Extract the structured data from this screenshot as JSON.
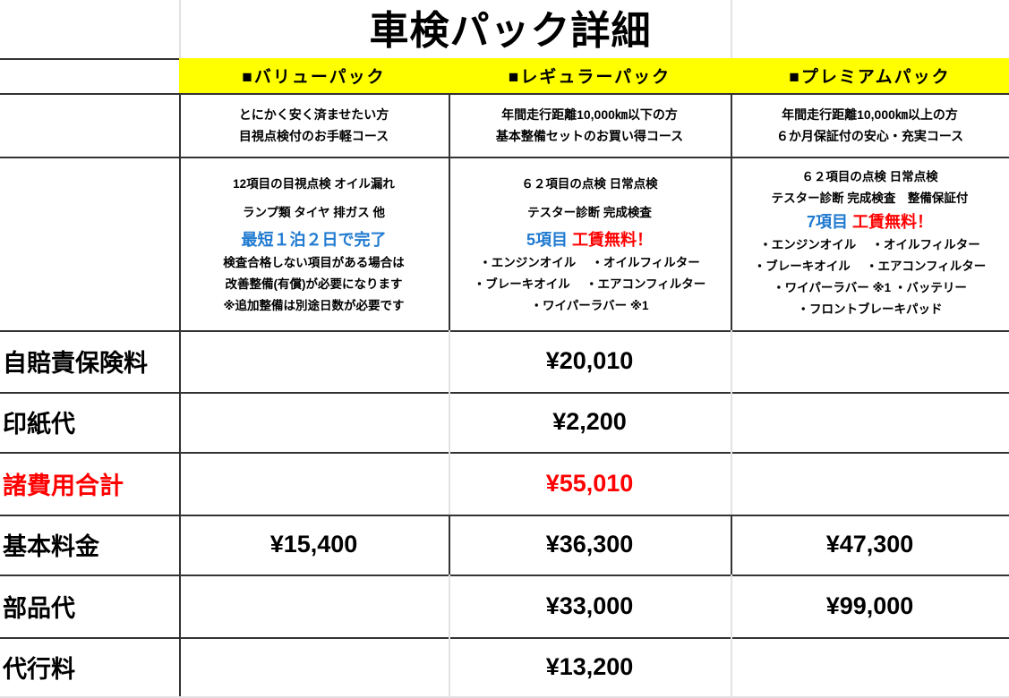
{
  "title": "車検パック詳細",
  "colors": {
    "header_bg": "#ffff00",
    "accent_blue": "#1f7ad0",
    "accent_red": "#ff0000"
  },
  "packs": [
    {
      "name": "■バリューパック",
      "description": [
        "とにかく安く済ませたい方",
        "目視点検付のお手軽コース"
      ],
      "details_top": [
        "12項目の目視点検 オイル漏れ",
        "ランプ類 タイヤ 排ガス 他"
      ],
      "highlight": "最短１泊２日で完了",
      "details_bottom": [
        "検査合格しない項目がある場合は",
        "改善整備(有償)が必要になります",
        "※追加整備は別途日数が必要です"
      ]
    },
    {
      "name": "■レギュラーパック",
      "description": [
        "年間走行距離10,000㎞以下の方",
        "基本整備セットのお買い得コース"
      ],
      "details_top": [
        "６２項目の点検 日常点検",
        "テスター診断 完成検査"
      ],
      "highlight_blue": "5項目",
      "highlight_red": "工賃無料！",
      "details_bottom": [
        "・エンジンオイル　 ・オイルフィルター",
        "・ブレーキオイル　 ・エアコンフィルター",
        "・ワイパーラバー ※1"
      ]
    },
    {
      "name": "■プレミアムパック",
      "description": [
        "年間走行距離10,000㎞以上の方",
        "６か月保証付の安心・充実コース"
      ],
      "details_top": [
        "６２項目の点検 日常点検",
        "テスター診断 完成検査　整備保証付"
      ],
      "highlight_blue": "7項目",
      "highlight_red": "工賃無料！",
      "details_bottom": [
        "・エンジンオイル　 ・オイルフィルター",
        "・ブレーキオイル　 ・エアコンフィルター",
        "・ワイパーラバー ※1 ・バッテリー",
        "・フロントブレーキパッド"
      ]
    }
  ],
  "rows": [
    {
      "label": "自賠責保険料",
      "shared": "¥20,010"
    },
    {
      "label": "印紙代",
      "shared": "¥2,200"
    },
    {
      "label": "諸費用合計",
      "shared": "¥55,010"
    },
    {
      "label": "基本料金",
      "values": [
        "¥15,400",
        "¥36,300",
        "¥47,300"
      ]
    },
    {
      "label": "部品代",
      "values": [
        "",
        "¥33,000",
        "¥99,000"
      ]
    },
    {
      "label": "代行料",
      "shared": "¥13,200"
    }
  ]
}
